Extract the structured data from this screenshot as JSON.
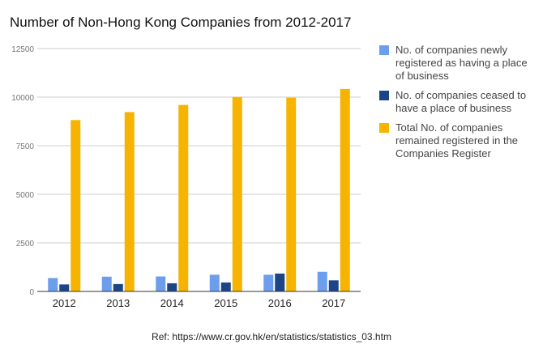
{
  "chart_data": {
    "type": "bar",
    "title": "Number of Non-Hong Kong Companies from 2012-2017",
    "categories": [
      "2012",
      "2013",
      "2014",
      "2015",
      "2016",
      "2017"
    ],
    "series": [
      {
        "name": "No. of companies newly registered as having a place of business",
        "color": "#6d9eeb",
        "values": [
          690,
          760,
          770,
          860,
          860,
          1010
        ]
      },
      {
        "name": "No. of companies ceased to have a place of business",
        "color": "#1c4587",
        "values": [
          360,
          380,
          420,
          460,
          920,
          570
        ]
      },
      {
        "name": "Total No. of companies remained registered in the Companies Register",
        "color": "#f6b400",
        "values": [
          8820,
          9230,
          9600,
          10010,
          9970,
          10420
        ]
      }
    ],
    "yticks": [
      "0",
      "2500",
      "5000",
      "7500",
      "10000",
      "12500"
    ],
    "ylim": [
      0,
      12500
    ],
    "grid": true,
    "legend": "right"
  },
  "reference": "Ref: https://www.cr.gov.hk/en/statistics/statistics_03.htm"
}
